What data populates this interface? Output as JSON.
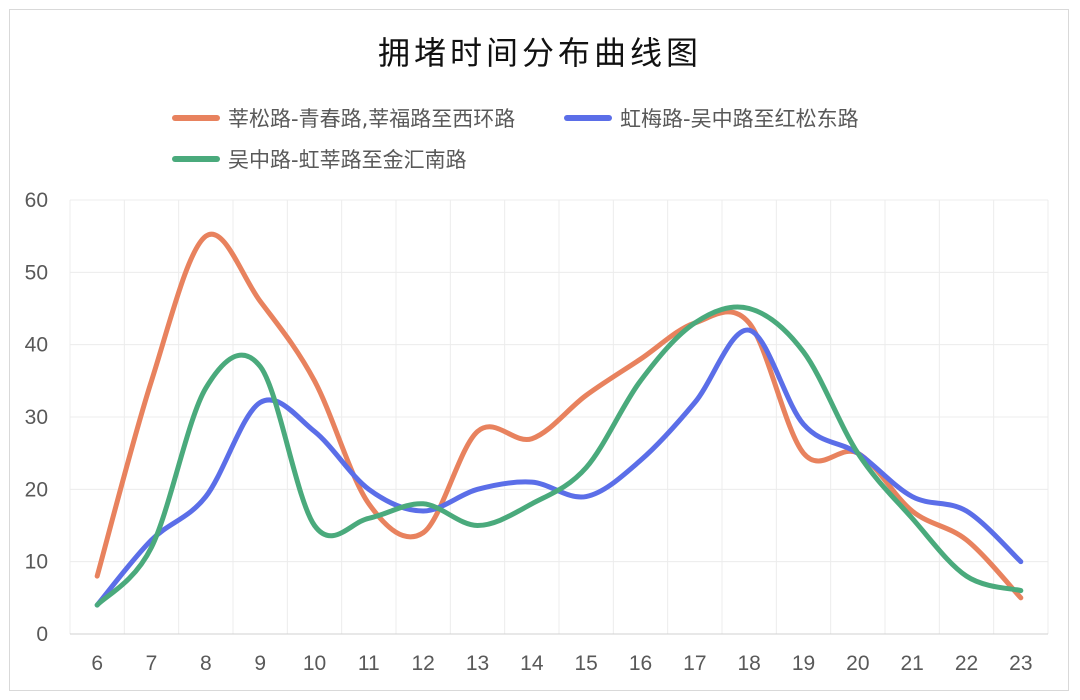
{
  "chart_data": {
    "type": "line",
    "title": "拥堵时间分布曲线图",
    "xlabel": "",
    "ylabel": "",
    "x": [
      6,
      7,
      8,
      9,
      10,
      11,
      12,
      13,
      14,
      15,
      16,
      17,
      18,
      19,
      20,
      21,
      22,
      23
    ],
    "ylim": [
      0,
      60
    ],
    "yticks": [
      0,
      10,
      20,
      30,
      40,
      50,
      60
    ],
    "grid": true,
    "smooth": true,
    "legend_position": "top",
    "series": [
      {
        "name": "莘松路-青春路,莘福路至西环路",
        "color": "#e8825e",
        "values": [
          8,
          35,
          55,
          46,
          35,
          18,
          14,
          28,
          27,
          33,
          38,
          43,
          43,
          25,
          25,
          17,
          13,
          5
        ]
      },
      {
        "name": "虹梅路-吴中路至红松东路",
        "color": "#5b6ee8",
        "values": [
          4,
          13,
          19,
          32,
          28,
          20,
          17,
          20,
          21,
          19,
          24,
          32,
          42,
          29,
          25,
          19,
          17,
          10
        ]
      },
      {
        "name": "吴中路-虹莘路至金汇南路",
        "color": "#4aaa7c",
        "values": [
          4,
          12,
          34,
          37,
          15,
          16,
          18,
          15,
          18,
          23,
          35,
          43,
          45,
          39,
          25,
          16,
          8,
          6
        ]
      }
    ]
  }
}
